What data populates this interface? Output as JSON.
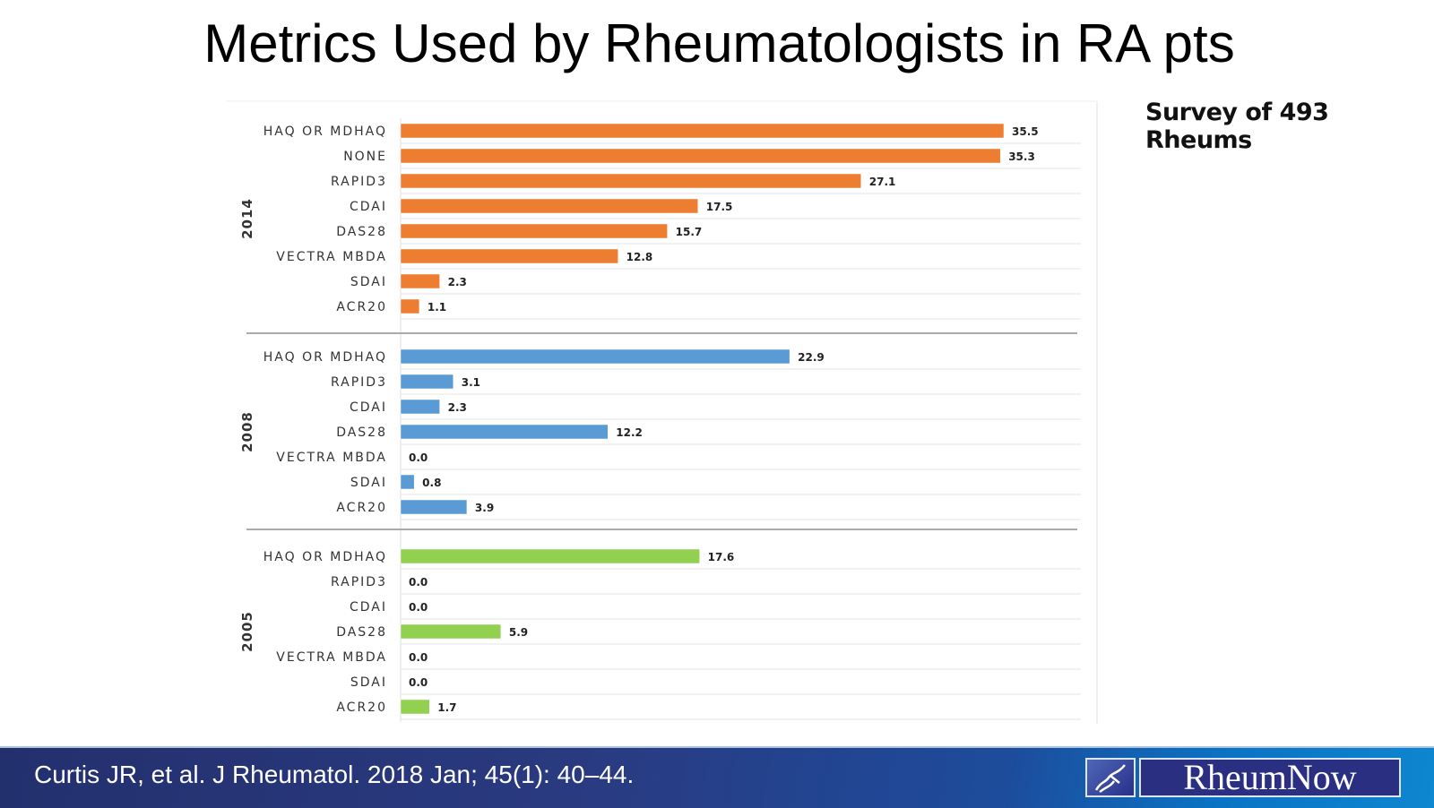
{
  "title": "Metrics Used by Rheumatologists in RA pts",
  "survey_note": "Survey of 493 Rheums",
  "citation": "Curtis JR, et al. J Rheumatol. 2018 Jan; 45(1): 40–44.",
  "logo_text": "RheumNow",
  "chart_data": {
    "type": "bar",
    "orientation": "horizontal",
    "title": "",
    "xlim": [
      0,
      35.5
    ],
    "grid": true,
    "groups": [
      {
        "name": "2014",
        "color": "#ed7d31",
        "categories": [
          "HAQ OR MDHAQ",
          "NONE",
          "RAPID3",
          "CDAI",
          "DAS28",
          "VECTRA MBDA",
          "SDAI",
          "ACR20"
        ],
        "values": [
          35.5,
          35.3,
          27.1,
          17.5,
          15.7,
          12.8,
          2.3,
          1.1
        ]
      },
      {
        "name": "2008",
        "color": "#5b9bd5",
        "categories": [
          "HAQ OR MDHAQ",
          "RAPID3",
          "CDAI",
          "DAS28",
          "VECTRA MBDA",
          "SDAI",
          "ACR20"
        ],
        "values": [
          22.9,
          3.1,
          2.3,
          12.2,
          0.0,
          0.8,
          3.9
        ]
      },
      {
        "name": "2005",
        "color": "#92d050",
        "categories": [
          "HAQ OR MDHAQ",
          "RAPID3",
          "CDAI",
          "DAS28",
          "VECTRA MBDA",
          "SDAI",
          "ACR20"
        ],
        "values": [
          17.6,
          0.0,
          0.0,
          5.9,
          0.0,
          0.0,
          1.7
        ]
      }
    ]
  }
}
